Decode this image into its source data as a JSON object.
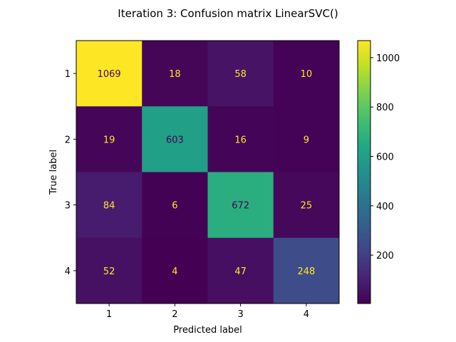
{
  "chart_data": {
    "type": "heatmap",
    "title": "Iteration 3: Confusion matrix LinearSVC()",
    "xlabel": "Predicted label",
    "ylabel": "True label",
    "x_categories": [
      "1",
      "2",
      "3",
      "4"
    ],
    "y_categories": [
      "1",
      "2",
      "3",
      "4"
    ],
    "matrix": [
      [
        1069,
        18,
        58,
        10
      ],
      [
        19,
        603,
        16,
        9
      ],
      [
        84,
        6,
        672,
        25
      ],
      [
        52,
        4,
        47,
        248
      ]
    ],
    "colormap": "viridis",
    "colorbar": {
      "ticks": [
        200,
        400,
        600,
        800,
        1000
      ],
      "tick_labels": [
        "200",
        "400",
        "600",
        "800",
        "1000"
      ],
      "range": [
        4,
        1069
      ]
    },
    "colors": {
      "text_on_dark": "#fde725",
      "text_on_light": "#440154"
    }
  }
}
